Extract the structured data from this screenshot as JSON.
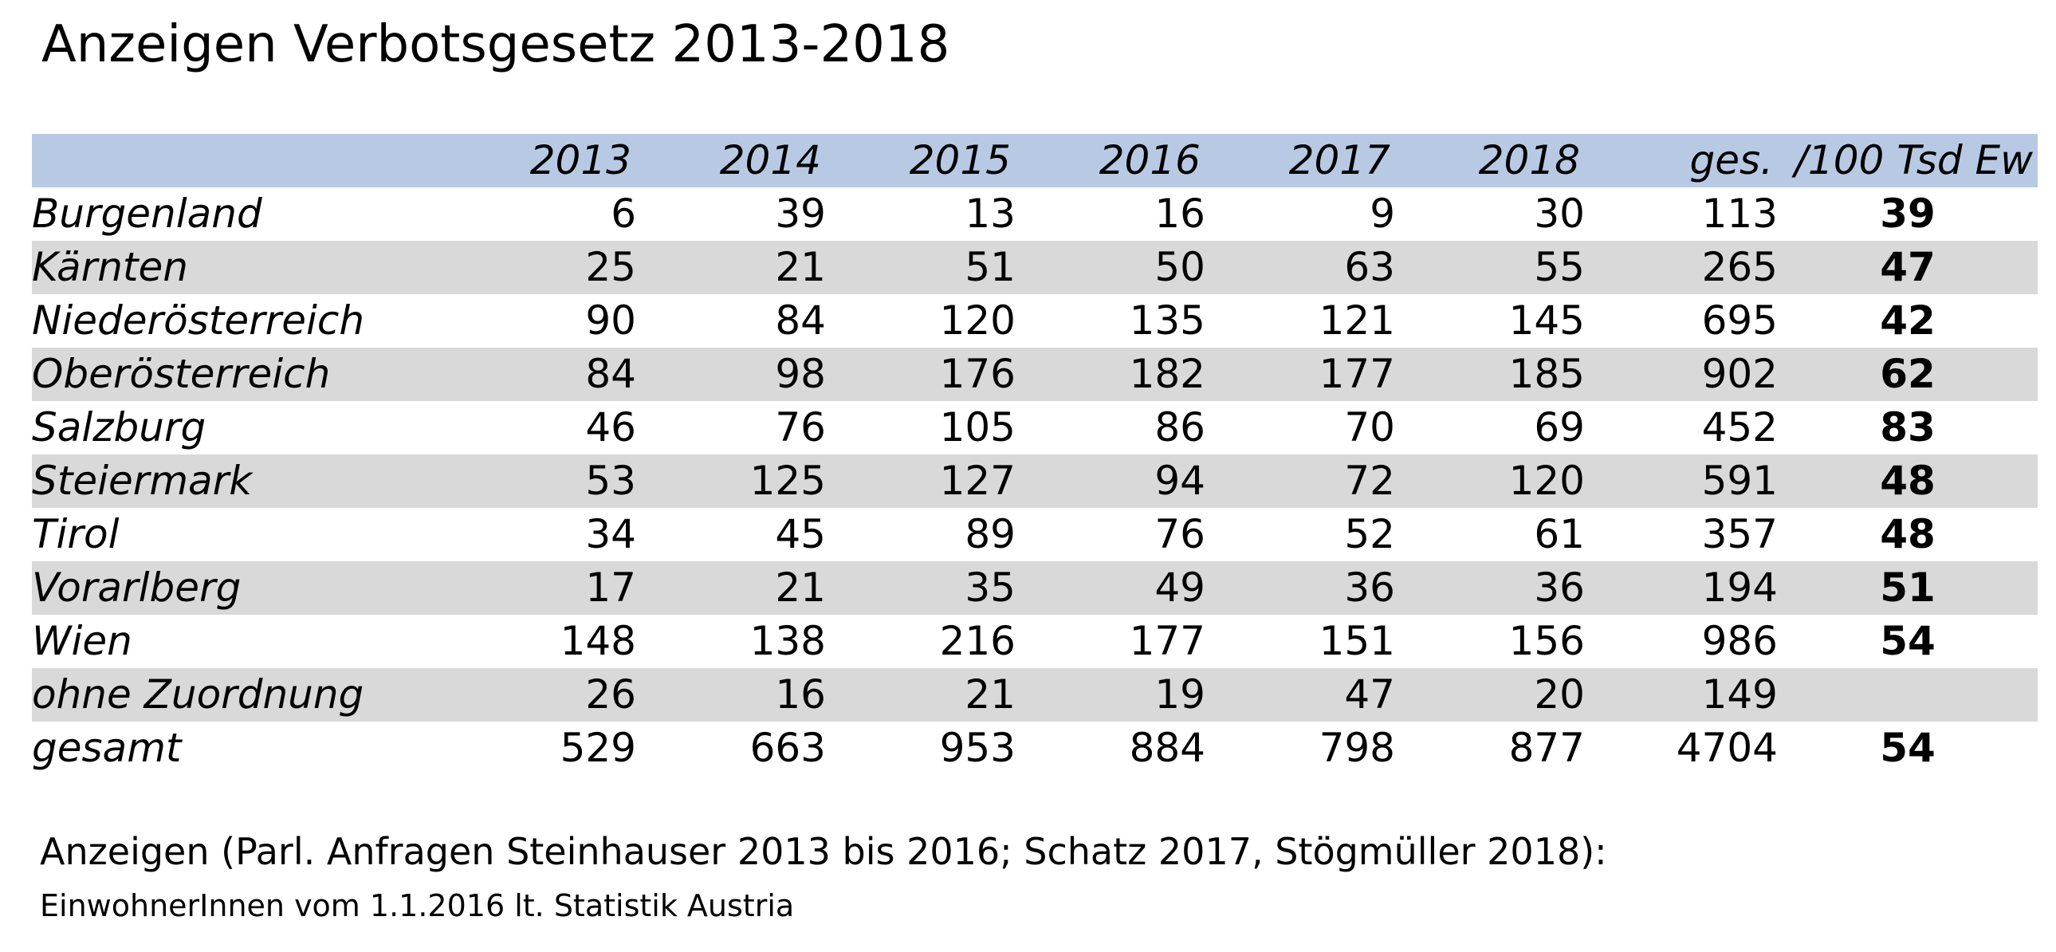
{
  "title": "Anzeigen Verbotsgesetz 2013-2018",
  "table": {
    "columns": [
      "",
      "2013",
      "2014",
      "2015",
      "2016",
      "2017",
      "2018",
      "ges.",
      "/100 Tsd Ew"
    ],
    "rows": [
      {
        "region": "Burgenland",
        "values": [
          "6",
          "39",
          "13",
          "16",
          "9",
          "30"
        ],
        "total": "113",
        "rate": "39"
      },
      {
        "region": "Kärnten",
        "values": [
          "25",
          "21",
          "51",
          "50",
          "63",
          "55"
        ],
        "total": "265",
        "rate": "47"
      },
      {
        "region": "Niederösterreich",
        "values": [
          "90",
          "84",
          "120",
          "135",
          "121",
          "145"
        ],
        "total": "695",
        "rate": "42"
      },
      {
        "region": "Oberösterreich",
        "values": [
          "84",
          "98",
          "176",
          "182",
          "177",
          "185"
        ],
        "total": "902",
        "rate": "62"
      },
      {
        "region": "Salzburg",
        "values": [
          "46",
          "76",
          "105",
          "86",
          "70",
          "69"
        ],
        "total": "452",
        "rate": "83"
      },
      {
        "region": "Steiermark",
        "values": [
          "53",
          "125",
          "127",
          "94",
          "72",
          "120"
        ],
        "total": "591",
        "rate": "48"
      },
      {
        "region": "Tirol",
        "values": [
          "34",
          "45",
          "89",
          "76",
          "52",
          "61"
        ],
        "total": "357",
        "rate": "48"
      },
      {
        "region": "Vorarlberg",
        "values": [
          "17",
          "21",
          "35",
          "49",
          "36",
          "36"
        ],
        "total": "194",
        "rate": "51"
      },
      {
        "region": "Wien",
        "values": [
          "148",
          "138",
          "216",
          "177",
          "151",
          "156"
        ],
        "total": "986",
        "rate": "54"
      },
      {
        "region": "ohne Zuordnung",
        "values": [
          "26",
          "16",
          "21",
          "19",
          "47",
          "20"
        ],
        "total": "149",
        "rate": ""
      },
      {
        "region": "gesamt",
        "values": [
          "529",
          "663",
          "953",
          "884",
          "798",
          "877"
        ],
        "total": "4704",
        "rate": "54"
      }
    ]
  },
  "footnotes": {
    "source": "Anzeigen (Parl. Anfragen Steinhauser 2013 bis 2016; Schatz 2017, Stögmüller 2018):",
    "population": "EinwohnerInnen vom 1.1.2016 lt. Statistik Austria"
  },
  "colors": {
    "header_band": "#b8c9e3",
    "row_shade": "#d9d9d9"
  }
}
